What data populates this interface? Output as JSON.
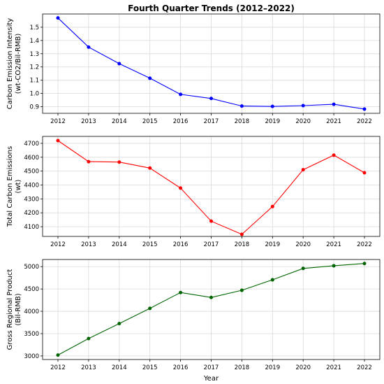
{
  "chart_data": {
    "title": "Fourth Quarter Trends (2012–2022)",
    "xlabel": "Year",
    "x": [
      "2012",
      "2013",
      "2014",
      "2015",
      "2016",
      "2017",
      "2018",
      "2019",
      "2020",
      "2021",
      "2022"
    ],
    "grid": true,
    "panels": [
      {
        "type": "line",
        "ylabel_lines": [
          "Carbon Emission Intensity",
          "(wt-CO2/Bil-RMB)"
        ],
        "color": "#0000ff",
        "values": [
          1.57,
          1.35,
          1.225,
          1.115,
          0.993,
          0.962,
          0.905,
          0.902,
          0.908,
          0.918,
          0.882
        ],
        "ylim": [
          0.85,
          1.6
        ],
        "yticks": [
          0.9,
          1.0,
          1.1,
          1.2,
          1.3,
          1.4,
          1.5
        ],
        "ytick_labels": [
          "0.9",
          "1.0",
          "1.1",
          "1.2",
          "1.3",
          "1.4",
          "1.5"
        ]
      },
      {
        "type": "line",
        "ylabel_lines": [
          "Total Carbon Emissions",
          "(wt)"
        ],
        "color": "#ff0000",
        "values": [
          4720,
          4568,
          4565,
          4522,
          4378,
          4140,
          4045,
          4245,
          4510,
          4615,
          4488
        ],
        "ylim": [
          4030,
          4750
        ],
        "yticks": [
          4100,
          4200,
          4300,
          4400,
          4500,
          4600,
          4700
        ],
        "ytick_labels": [
          "4100",
          "4200",
          "4300",
          "4400",
          "4500",
          "4600",
          "4700"
        ]
      },
      {
        "type": "line",
        "ylabel_lines": [
          "Gross Regional Product",
          "(Bil-RMB)"
        ],
        "color": "#006400",
        "values": [
          3020,
          3390,
          3725,
          4065,
          4420,
          4310,
          4470,
          4705,
          4960,
          5020,
          5070
        ],
        "ylim": [
          2920,
          5160
        ],
        "yticks": [
          3000,
          3500,
          4000,
          4500,
          5000
        ],
        "ytick_labels": [
          "3000",
          "3500",
          "4000",
          "4500",
          "5000"
        ]
      }
    ]
  }
}
